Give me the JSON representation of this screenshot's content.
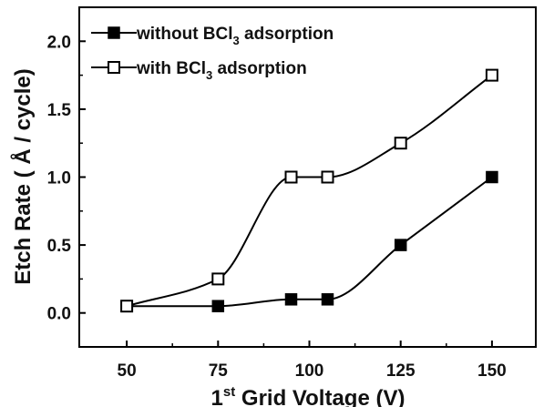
{
  "chart_data": {
    "type": "line",
    "xlabel": "1st Grid Voltage (V)",
    "xlabel_parts": {
      "num": "1",
      "sup": "st",
      "rest": " Grid Voltage (V)"
    },
    "ylabel": "Etch Rate ( Å / cycle)",
    "xlim": [
      37,
      162
    ],
    "ylim": [
      -0.25,
      2.25
    ],
    "xticks": [
      50,
      75,
      100,
      125,
      150
    ],
    "yticks": [
      0.0,
      0.5,
      1.0,
      1.5,
      2.0
    ],
    "ytick_labels": [
      "0.0",
      "0.5",
      "1.0",
      "1.5",
      "2.0"
    ],
    "grid": false,
    "legend_position": "top-left",
    "series": [
      {
        "name": "without BCl3 adsorption",
        "legend_parts": {
          "pre": "without BCl",
          "sub": "3",
          "post": " adsorption"
        },
        "marker": "filled-square",
        "color": "#000000",
        "x": [
          50,
          75,
          95,
          105,
          125,
          150
        ],
        "y": [
          0.05,
          0.05,
          0.1,
          0.1,
          0.5,
          1.0
        ]
      },
      {
        "name": "with BCl3 adsorption",
        "legend_parts": {
          "pre": "with BCl",
          "sub": "3",
          "post": " adsorption"
        },
        "marker": "open-square",
        "color": "#000000",
        "x": [
          50,
          75,
          95,
          105,
          125,
          150
        ],
        "y": [
          0.05,
          0.25,
          1.0,
          1.0,
          1.25,
          1.75
        ]
      }
    ]
  }
}
